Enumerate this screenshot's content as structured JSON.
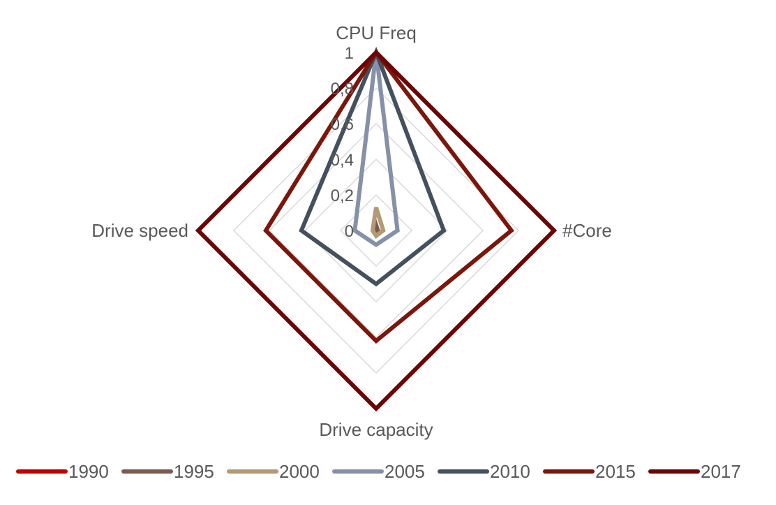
{
  "chart_data": {
    "type": "radar",
    "title": "",
    "axes": [
      "CPU Freq",
      "#Core",
      "Drive capacity",
      "Drive speed"
    ],
    "rlim": [
      0,
      1
    ],
    "ticks": [
      "0",
      "0,2",
      "0,4",
      "0,6",
      "0,8",
      "1"
    ],
    "tick_values": [
      0,
      0.2,
      0.4,
      0.6,
      0.8,
      1.0
    ],
    "grid": true,
    "legend": "bottom",
    "series": [
      {
        "name": "1990",
        "color": "#C00000",
        "values": [
          0.0,
          0.0,
          0.0,
          0.0
        ]
      },
      {
        "name": "1995",
        "color": "#7B5B4E",
        "values": [
          0.03,
          0.01,
          0.01,
          0.01
        ]
      },
      {
        "name": "2000",
        "color": "#B39A74",
        "values": [
          0.13,
          0.04,
          0.03,
          0.02
        ]
      },
      {
        "name": "2005",
        "color": "#8591A8",
        "values": [
          1.0,
          0.12,
          0.08,
          0.12
        ]
      },
      {
        "name": "2010",
        "color": "#44505E",
        "values": [
          1.0,
          0.38,
          0.3,
          0.42
        ]
      },
      {
        "name": "2015",
        "color": "#7B160C",
        "values": [
          1.0,
          0.76,
          0.62,
          0.62
        ]
      },
      {
        "name": "2017",
        "color": "#6B0606",
        "values": [
          1.0,
          1.0,
          1.0,
          1.0
        ]
      }
    ]
  }
}
